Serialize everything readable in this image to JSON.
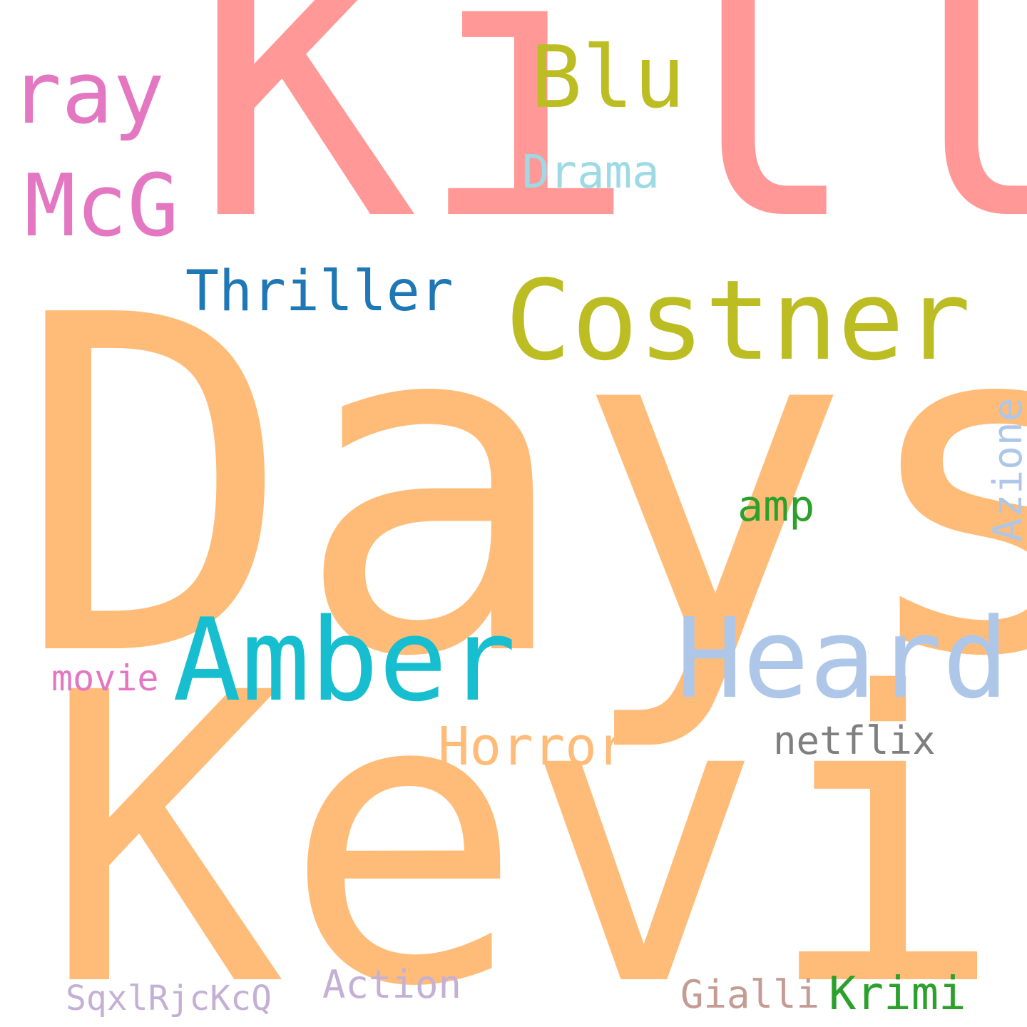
{
  "words": {
    "days": {
      "text": "Days",
      "color": "#ffbc78"
    },
    "kevin": {
      "text": "Kevin",
      "color": "#ffbc78"
    },
    "kill": {
      "text": "Kill",
      "color": "#ff9896"
    },
    "costner": {
      "text": "Costner",
      "color": "#bcbd22"
    },
    "amber": {
      "text": "Amber",
      "color": "#17becf"
    },
    "heard": {
      "text": "Heard",
      "color": "#aec7e8"
    },
    "ray": {
      "text": "ray",
      "color": "#e377c2"
    },
    "mcg": {
      "text": "McG",
      "color": "#e377c2"
    },
    "blu": {
      "text": "Blu",
      "color": "#bcbd22"
    },
    "thriller": {
      "text": "Thriller",
      "color": "#1f77b4"
    },
    "drama": {
      "text": "Drama",
      "color": "#9edae5"
    },
    "horror": {
      "text": "Horror",
      "color": "#ffbc78"
    },
    "amp": {
      "text": "amp",
      "color": "#2ca02c"
    },
    "netflix": {
      "text": "netflix",
      "color": "#7f7f7f"
    },
    "movie": {
      "text": "movie",
      "color": "#e377c2"
    },
    "azione": {
      "text": "Azione",
      "color": "#aec7e8"
    },
    "action": {
      "text": "Action",
      "color": "#c5b0d5"
    },
    "gialli": {
      "text": "Gialli",
      "color": "#c49c94"
    },
    "krimi": {
      "text": "Krimi",
      "color": "#2ca02c"
    },
    "sqxl": {
      "text": "SqxlRjcKcQ",
      "color": "#c5b0d5"
    }
  }
}
